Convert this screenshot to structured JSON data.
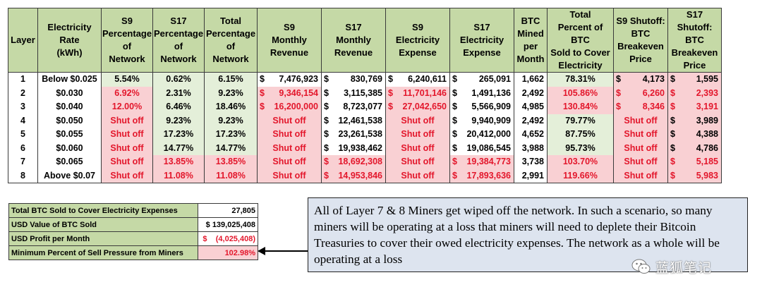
{
  "main_table": {
    "headers": [
      "Layer",
      "Electricity\nRate\n(kWh)",
      "S9\nPercentage\nof\nNetwork",
      "S17\nPercentage\nof\nNetwork",
      "Total\nPercentage\nof\nNetwork",
      "S9\nMonthly\nRevenue",
      "S17\nMonthly\nRevenue",
      "S9\nElectricity\nExpense",
      "S17\nElectricity\nExpense",
      "BTC\nMined\nper\nMonth",
      "Total\nPercent of BTC\nSold to Cover\nElectricity",
      "S9 Shutoff:\nBTC\nBreakeven\nPrice",
      "S17 Shutoff:\nBTC\nBreakeven\nPrice"
    ],
    "rows": [
      {
        "layer": "1",
        "rate": "Below $0.025",
        "s9_pct": "5.54%",
        "s17_pct": "0.62%",
        "total_pct": "6.15%",
        "s9_rev": "7,476,923",
        "s17_rev": "830,769",
        "s9_exp": "6,240,611",
        "s17_exp": "265,091",
        "btc": "1,662",
        "pct_sold": "78.31%",
        "s9_be": "4,173",
        "s17_be": "1,595"
      },
      {
        "layer": "2",
        "rate": "$0.030",
        "s9_pct": "6.92%",
        "s17_pct": "2.31%",
        "total_pct": "9.23%",
        "s9_rev": "9,346,154",
        "s17_rev": "3,115,385",
        "s9_exp": "11,701,146",
        "s17_exp": "1,491,136",
        "btc": "2,492",
        "pct_sold": "105.86%",
        "s9_be": "6,260",
        "s17_be": "2,393"
      },
      {
        "layer": "3",
        "rate": "$0.040",
        "s9_pct": "12.00%",
        "s17_pct": "6.46%",
        "total_pct": "18.46%",
        "s9_rev": "16,200,000",
        "s17_rev": "8,723,077",
        "s9_exp": "27,042,650",
        "s17_exp": "5,566,909",
        "btc": "4,985",
        "pct_sold": "130.84%",
        "s9_be": "8,346",
        "s17_be": "3,191"
      },
      {
        "layer": "4",
        "rate": "$0.050",
        "s9_pct": "Shut off",
        "s17_pct": "9.23%",
        "total_pct": "9.23%",
        "s9_rev": "Shut off",
        "s17_rev": "12,461,538",
        "s9_exp": "Shut off",
        "s17_exp": "9,940,909",
        "btc": "2,492",
        "pct_sold": "79.77%",
        "s9_be": "Shut off",
        "s17_be": "3,989"
      },
      {
        "layer": "5",
        "rate": "$0.055",
        "s9_pct": "Shut off",
        "s17_pct": "17.23%",
        "total_pct": "17.23%",
        "s9_rev": "Shut off",
        "s17_rev": "23,261,538",
        "s9_exp": "Shut off",
        "s17_exp": "20,412,000",
        "btc": "4,652",
        "pct_sold": "87.75%",
        "s9_be": "Shut off",
        "s17_be": "4,388"
      },
      {
        "layer": "6",
        "rate": "$0.060",
        "s9_pct": "Shut off",
        "s17_pct": "14.77%",
        "total_pct": "14.77%",
        "s9_rev": "Shut off",
        "s17_rev": "19,938,462",
        "s9_exp": "Shut off",
        "s17_exp": "19,086,545",
        "btc": "3,988",
        "pct_sold": "95.73%",
        "s9_be": "Shut off",
        "s17_be": "4,786"
      },
      {
        "layer": "7",
        "rate": "$0.065",
        "s9_pct": "Shut off",
        "s17_pct": "13.85%",
        "total_pct": "13.85%",
        "s9_rev": "Shut off",
        "s17_rev": "18,692,308",
        "s9_exp": "Shut off",
        "s17_exp": "19,384,773",
        "btc": "3,738",
        "pct_sold": "103.70%",
        "s9_be": "Shut off",
        "s17_be": "5,185"
      },
      {
        "layer": "8",
        "rate": "Above $0.07",
        "s9_pct": "Shut off",
        "s17_pct": "11.08%",
        "total_pct": "11.08%",
        "s9_rev": "Shut off",
        "s17_rev": "14,953,846",
        "s9_exp": "Shut off",
        "s17_exp": "17,893,636",
        "btc": "2,991",
        "pct_sold": "119.66%",
        "s9_be": "Shut off",
        "s17_be": "5,983"
      }
    ],
    "cell_styles": [
      {
        "s9_pct": "g",
        "s17_pct": "g",
        "total_pct": "g",
        "pct_sold": "g",
        "s9_be": "p",
        "s17_be": "p"
      },
      {
        "s9_pct": "p",
        "s17_pct": "g",
        "total_pct": "g",
        "s9_rev": "p",
        "s9_exp": "p",
        "pct_sold": "p",
        "s9_be": "p",
        "s17_be": "p"
      },
      {
        "s9_pct": "p",
        "s17_pct": "g",
        "total_pct": "g",
        "s9_rev": "p",
        "s9_exp": "p",
        "pct_sold": "p",
        "s9_be": "p",
        "s17_be": "p"
      },
      {
        "s9_pct": "p",
        "s17_pct": "g",
        "total_pct": "g",
        "s9_rev": "p",
        "s9_exp": "p",
        "pct_sold": "g",
        "s9_be": "p",
        "s17_be": "p"
      },
      {
        "s9_pct": "p",
        "s17_pct": "g",
        "total_pct": "g",
        "s9_rev": "p",
        "s9_exp": "p",
        "pct_sold": "g",
        "s9_be": "p",
        "s17_be": "p"
      },
      {
        "s9_pct": "p",
        "s17_pct": "g",
        "total_pct": "g",
        "s9_rev": "p",
        "s9_exp": "p",
        "pct_sold": "g",
        "s9_be": "p",
        "s17_be": "p"
      },
      {
        "s9_pct": "p",
        "s17_pct": "p",
        "total_pct": "p",
        "s9_rev": "p",
        "s9_exp": "p",
        "s17_rev": "p",
        "s17_exp": "p",
        "pct_sold": "p",
        "s9_be": "p",
        "s17_be": "p"
      },
      {
        "s9_pct": "p",
        "s17_pct": "p",
        "total_pct": "p",
        "s9_rev": "p",
        "s9_exp": "p",
        "s17_rev": "p",
        "s17_exp": "p",
        "pct_sold": "p",
        "s9_be": "p",
        "s17_be": "p"
      }
    ],
    "red_text": [
      [],
      [
        "s9_pct",
        "s9_rev",
        "s9_exp",
        "pct_sold",
        "s9_be",
        "s17_be"
      ],
      [
        "s9_pct",
        "s9_rev",
        "s9_exp",
        "pct_sold",
        "s9_be",
        "s17_be"
      ],
      [
        "s9_pct",
        "s9_rev",
        "s9_exp",
        "s9_be"
      ],
      [
        "s9_pct",
        "s9_rev",
        "s9_exp",
        "s9_be"
      ],
      [
        "s9_pct",
        "s9_rev",
        "s9_exp",
        "s9_be"
      ],
      [
        "s9_pct",
        "s17_pct",
        "total_pct",
        "s9_rev",
        "s17_rev",
        "s9_exp",
        "s17_exp",
        "pct_sold",
        "s9_be",
        "s17_be"
      ],
      [
        "s9_pct",
        "s17_pct",
        "total_pct",
        "s9_rev",
        "s17_rev",
        "s9_exp",
        "s17_exp",
        "pct_sold",
        "s9_be",
        "s17_be"
      ]
    ],
    "currency_symbol": "$"
  },
  "summary": {
    "rows": [
      {
        "label": "Total BTC Sold to Cover Electricity Expenses",
        "value": "27,805"
      },
      {
        "label": "USD Value of BTC Sold",
        "value": "$ 139,025,408"
      },
      {
        "label": "USD Profit per Month",
        "value": "$    (4,025,408)"
      },
      {
        "label": "Minimum Percent of Sell Pressure from Miners",
        "value": "102.98%"
      }
    ]
  },
  "callout": {
    "text": "All of Layer 7 & 8 Miners get wiped off the network. In such a scenario, so many miners will be operating at a loss that miners will need to deplete their Bitcoin Treasuries to cover their owed electricity expenses. The network as a whole will be operating at a loss"
  },
  "watermark": {
    "text": "蓝狐笔记",
    "icon": "wechat-icon"
  },
  "colors": {
    "header_green": "#c5d9a6",
    "cell_green": "#e4efd9",
    "cell_pink": "#f9d0d3",
    "negative_red": "#e3162b",
    "callout_bg": "#dde4ef"
  }
}
